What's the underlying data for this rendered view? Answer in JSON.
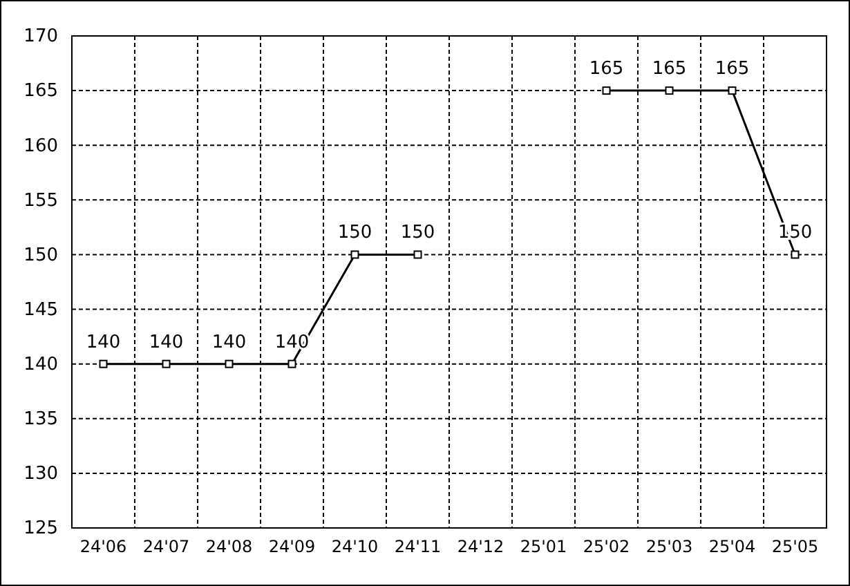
{
  "chart_data": {
    "type": "line",
    "categories": [
      "24'06",
      "24'07",
      "24'08",
      "24'09",
      "24'10",
      "24'11",
      "24'12",
      "25'01",
      "25'02",
      "25'03",
      "25'04",
      "25'05"
    ],
    "values": [
      140,
      140,
      140,
      140,
      150,
      150,
      null,
      null,
      165,
      165,
      165,
      150
    ],
    "color": "#000000",
    "ylim": [
      125,
      170
    ],
    "yticks": [
      125,
      130,
      135,
      140,
      145,
      150,
      155,
      160,
      165,
      170
    ],
    "grid": true,
    "marker": "square",
    "line_style": "solid",
    "data_labels": true
  }
}
